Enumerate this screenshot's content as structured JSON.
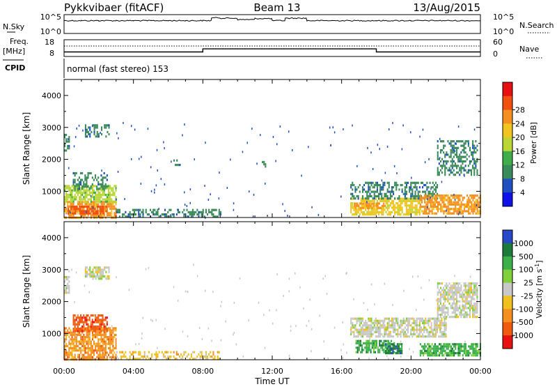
{
  "header": {
    "radar_title": "Pykkvibaer (fitACF)",
    "beam": "Beam 13",
    "date": "13/Aug/2015"
  },
  "noise_panel": {
    "left_label": "N.Sky",
    "left_ticks": [
      "10^5",
      "10^0"
    ],
    "right_ticks": [
      "10^5",
      "10^0"
    ],
    "right_label": "N.Search"
  },
  "freq_panel": {
    "left_label_top": "Freq.",
    "left_label_bottom": "[MHz]",
    "left_ticks": [
      "18",
      "8"
    ],
    "right_ticks": [
      "60",
      "0"
    ],
    "right_label": "Nave"
  },
  "cpid": {
    "label": "CPID",
    "text": "normal (fast stereo) 153"
  },
  "x_axis": {
    "label": "Time UT",
    "ticks": [
      "00:00",
      "04:00",
      "08:00",
      "12:00",
      "16:00",
      "20:00",
      "00:00"
    ]
  },
  "chart_data": [
    {
      "type": "line",
      "name": "N.Sky",
      "y_scale": "log",
      "ylim": [
        1,
        100000
      ],
      "x": [
        "00:00",
        "01:00",
        "02:00",
        "03:00",
        "04:00",
        "05:00",
        "06:00",
        "07:00",
        "08:00",
        "08:30",
        "09:00",
        "10:00",
        "11:00",
        "12:00",
        "12:45",
        "14:00",
        "16:00",
        "18:00",
        "20:00",
        "22:00",
        "24:00"
      ],
      "values": [
        3000,
        3000,
        3000,
        3000,
        3000,
        3000,
        3000,
        3000,
        3000,
        20000,
        15000,
        6000,
        12000,
        3000,
        15000,
        3000,
        3000,
        3000,
        3000,
        3000,
        3000
      ]
    },
    {
      "type": "line",
      "name": "Freq.",
      "ylabel": "[MHz]",
      "ylim": [
        8,
        18
      ],
      "x": [
        "00:00",
        "08:00",
        "08:00",
        "18:00",
        "18:00",
        "24:00"
      ],
      "values": [
        10.5,
        10.5,
        12.5,
        12.5,
        10.5,
        10.5
      ]
    },
    {
      "type": "heatmap",
      "name": "Power",
      "xlabel": "Time UT",
      "ylabel": "Slant Range [km]",
      "xlim": [
        "00:00",
        "24:00"
      ],
      "ylim": [
        180,
        4500
      ],
      "yticks": [
        1000,
        2000,
        3000,
        4000
      ],
      "colorbar": {
        "label": "Power [dB]",
        "ticks": [
          4,
          8,
          12,
          16,
          20,
          24,
          28
        ],
        "colors": [
          "#1010e8",
          "#2050c0",
          "#3a8a5a",
          "#3fae4a",
          "#b9d636",
          "#f0c520",
          "#f59020",
          "#f05010",
          "#e81010"
        ]
      },
      "patches": [
        {
          "t0": 0.0,
          "t1": 3.0,
          "r0": 200,
          "r1": 700,
          "level": 24
        },
        {
          "t0": 0.2,
          "t1": 2.4,
          "r0": 300,
          "r1": 550,
          "level": 28
        },
        {
          "t0": 0.0,
          "t1": 3.0,
          "r0": 700,
          "r1": 1200,
          "level": 16
        },
        {
          "t0": 0.5,
          "t1": 2.5,
          "r0": 1100,
          "r1": 1600,
          "level": 8
        },
        {
          "t0": 0.0,
          "t1": 0.3,
          "r0": 2300,
          "r1": 2800,
          "level": 8
        },
        {
          "t0": 1.2,
          "t1": 2.6,
          "r0": 2700,
          "r1": 3100,
          "level": 8
        },
        {
          "t0": 3.0,
          "t1": 9.0,
          "r0": 200,
          "r1": 450,
          "level": 8
        },
        {
          "t0": 6.3,
          "t1": 6.8,
          "r0": 1800,
          "r1": 2000,
          "level": 8
        },
        {
          "t0": 11.4,
          "t1": 11.6,
          "r0": 1800,
          "r1": 1950,
          "level": 8
        },
        {
          "t0": 16.5,
          "t1": 20.5,
          "r0": 300,
          "r1": 800,
          "level": 20
        },
        {
          "t0": 16.7,
          "t1": 18.5,
          "r0": 450,
          "r1": 650,
          "level": 24
        },
        {
          "t0": 16.5,
          "t1": 21.5,
          "r0": 800,
          "r1": 1300,
          "level": 8
        },
        {
          "t0": 20.5,
          "t1": 24.0,
          "r0": 300,
          "r1": 900,
          "level": 24
        },
        {
          "t0": 21.5,
          "t1": 23.8,
          "r0": 1500,
          "r1": 2600,
          "level": 8
        }
      ]
    },
    {
      "type": "heatmap",
      "name": "Velocity",
      "xlabel": "Time UT",
      "ylabel": "Slant Range [km]",
      "xlim": [
        "00:00",
        "24:00"
      ],
      "ylim": [
        180,
        4500
      ],
      "yticks": [
        1000,
        2000,
        3000,
        4000
      ],
      "colorbar": {
        "label": "Velocity [m s^-1]",
        "ticks": [
          1000,
          500,
          100,
          25,
          -25,
          -100,
          -500,
          -1000
        ],
        "colors": [
          "#2848c8",
          "#1c7a3a",
          "#3cb04a",
          "#7fd03a",
          "#c8c8c8",
          "#f0c020",
          "#f59020",
          "#f05a10",
          "#e81010"
        ]
      },
      "patches": [
        {
          "t0": 0.0,
          "t1": 3.0,
          "r0": 200,
          "r1": 1200,
          "level": -500
        },
        {
          "t0": 0.5,
          "t1": 2.5,
          "r0": 1100,
          "r1": 1600,
          "level": -1000
        },
        {
          "t0": 0.0,
          "t1": 0.3,
          "r0": 2300,
          "r1": 2800,
          "level": 0
        },
        {
          "t0": 1.2,
          "t1": 2.6,
          "r0": 2700,
          "r1": 3100,
          "level": 0
        },
        {
          "t0": 3.0,
          "t1": 9.0,
          "r0": 200,
          "r1": 450,
          "level": -100
        },
        {
          "t0": 16.5,
          "t1": 22.0,
          "r0": 900,
          "r1": 1500,
          "level": 0
        },
        {
          "t0": 16.8,
          "t1": 19.0,
          "r0": 400,
          "r1": 800,
          "level": 100
        },
        {
          "t0": 18.5,
          "t1": 19.5,
          "r0": 400,
          "r1": 700,
          "level": 500
        },
        {
          "t0": 20.5,
          "t1": 24.0,
          "r0": 300,
          "r1": 700,
          "level": 100
        },
        {
          "t0": 21.5,
          "t1": 23.8,
          "r0": 1500,
          "r1": 2600,
          "level": 0
        }
      ]
    }
  ]
}
